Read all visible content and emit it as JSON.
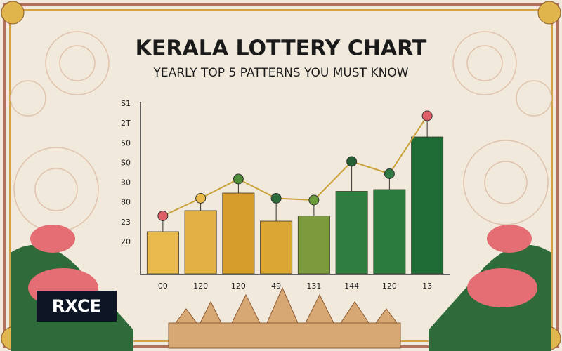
{
  "chart_data": {
    "type": "bar",
    "title": "KERALA LOTTERY CHART",
    "subtitle": "YEARLY TOP 5 PATTERNS YOU MUST KNOW",
    "categories": [
      "00",
      "120",
      "120",
      "49",
      "131",
      "144",
      "120",
      "13"
    ],
    "values": [
      24,
      36,
      46,
      30,
      33,
      47,
      48,
      78
    ],
    "colors": [
      "#e9bb4e",
      "#e3b043",
      "#d69c2c",
      "#dba634",
      "#7b9b3c",
      "#2f7e40",
      "#2b7b3d",
      "#1f6b36"
    ],
    "line_values": [
      33,
      43,
      54,
      43,
      42,
      64,
      57,
      90
    ],
    "line_colors": [
      "#e0606a",
      "#e8b84a",
      "#4f8a3a",
      "#2e6b3a",
      "#6a9a3a",
      "#245e34",
      "#2f7a44",
      "#e0606a"
    ],
    "line_color": "#c9a23c",
    "y_axis_labels": [
      "S1",
      "2T",
      "50",
      "S0",
      "30",
      "80",
      "23",
      "20"
    ],
    "ylim": [
      0,
      100
    ]
  },
  "logo": "RXCE"
}
